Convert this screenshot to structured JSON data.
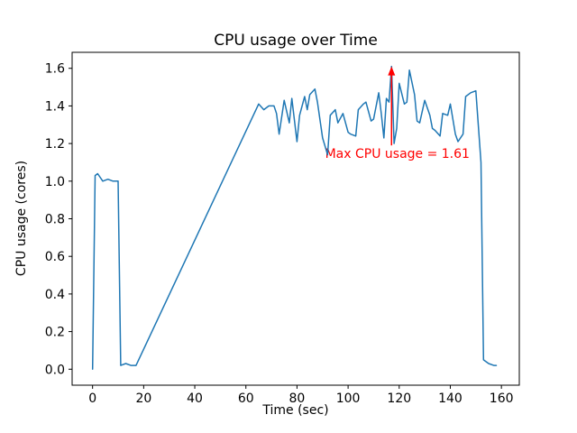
{
  "chart_data": {
    "type": "line",
    "title": "CPU usage over Time",
    "xlabel": "Time (sec)",
    "ylabel": "CPU usage (cores)",
    "line_color": "#1f77b4",
    "background_color": "#ffffff",
    "grid": false,
    "legend": "none",
    "xlim": [
      -8,
      167
    ],
    "ylim": [
      -0.085,
      1.685
    ],
    "xticks": [
      0,
      20,
      40,
      60,
      80,
      100,
      120,
      140,
      160
    ],
    "yticks": [
      "0.0",
      "0.2",
      "0.4",
      "0.6",
      "0.8",
      "1.0",
      "1.2",
      "1.4",
      "1.6"
    ],
    "x": [
      0,
      1,
      2,
      4,
      6,
      8,
      10,
      11,
      13,
      15,
      17,
      65,
      67,
      69,
      71,
      72,
      73,
      75,
      77,
      78,
      80,
      81,
      83,
      84,
      85,
      87,
      88,
      90,
      92,
      93,
      95,
      96,
      98,
      100,
      101,
      103,
      104,
      106,
      107,
      109,
      110,
      112,
      113,
      114,
      115,
      116,
      117,
      118,
      119,
      120,
      122,
      123,
      124,
      126,
      127,
      128,
      130,
      132,
      133,
      134,
      136,
      137,
      139,
      140,
      142,
      143,
      145,
      146,
      148,
      150,
      152,
      153,
      155,
      157,
      158
    ],
    "y": [
      0.0,
      1.03,
      1.04,
      1.0,
      1.01,
      1.0,
      1.0,
      0.02,
      0.03,
      0.02,
      0.02,
      1.41,
      1.38,
      1.4,
      1.4,
      1.36,
      1.25,
      1.43,
      1.31,
      1.44,
      1.21,
      1.35,
      1.45,
      1.38,
      1.46,
      1.49,
      1.42,
      1.23,
      1.14,
      1.35,
      1.38,
      1.31,
      1.36,
      1.26,
      1.25,
      1.24,
      1.38,
      1.41,
      1.42,
      1.32,
      1.33,
      1.47,
      1.36,
      1.23,
      1.44,
      1.42,
      1.61,
      1.2,
      1.28,
      1.52,
      1.41,
      1.42,
      1.59,
      1.46,
      1.32,
      1.31,
      1.43,
      1.35,
      1.28,
      1.27,
      1.24,
      1.36,
      1.35,
      1.41,
      1.25,
      1.21,
      1.25,
      1.45,
      1.47,
      1.48,
      1.1,
      0.05,
      0.03,
      0.02,
      0.02
    ],
    "annotation": {
      "text": "Max CPU usage = 1.61",
      "color": "#ff0000",
      "xy": [
        117,
        1.61
      ],
      "arrow_tail": [
        117,
        1.19
      ],
      "xytext": [
        91,
        1.125
      ]
    }
  }
}
